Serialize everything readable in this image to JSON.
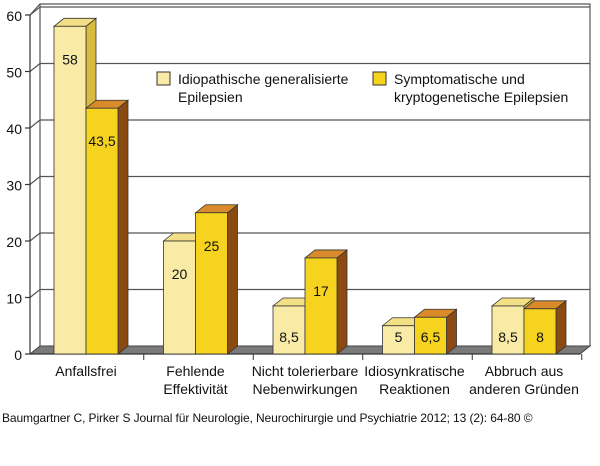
{
  "chart_data": {
    "type": "bar",
    "categories": [
      "Anfallsfrei",
      "Fehlende\nEffektivität",
      "Nicht tolerierbare\nNebenwirkungen",
      "Idiosynkratische\nReaktionen",
      "Abbruch aus\nanderen Gründen"
    ],
    "series": [
      {
        "name": "Idiopathische generalisierte\nEpilepsien",
        "values": [
          58,
          20,
          8.5,
          5,
          8.5
        ],
        "labels": [
          "58",
          "20",
          "8,5",
          "5",
          "8,5"
        ],
        "color": "#f9eaa6"
      },
      {
        "name": "Symptomatische und\nkryptogenetische Epilepsien",
        "values": [
          43.5,
          25,
          17,
          6.5,
          8
        ],
        "labels": [
          "43,5",
          "25",
          "17",
          "6,5",
          "8"
        ],
        "color": "#f5d31f"
      }
    ],
    "yticks": [
      "0",
      "10",
      "20",
      "30",
      "40",
      "50",
      "60"
    ],
    "ylim": [
      0,
      60
    ],
    "grid": true,
    "style": "3d",
    "legend": "top-right"
  },
  "source": "Baumgartner C, Pirker S Journal für Neurologie, Neurochirurgie und Psychiatrie 2012; 13 (2): 64-80 ©"
}
